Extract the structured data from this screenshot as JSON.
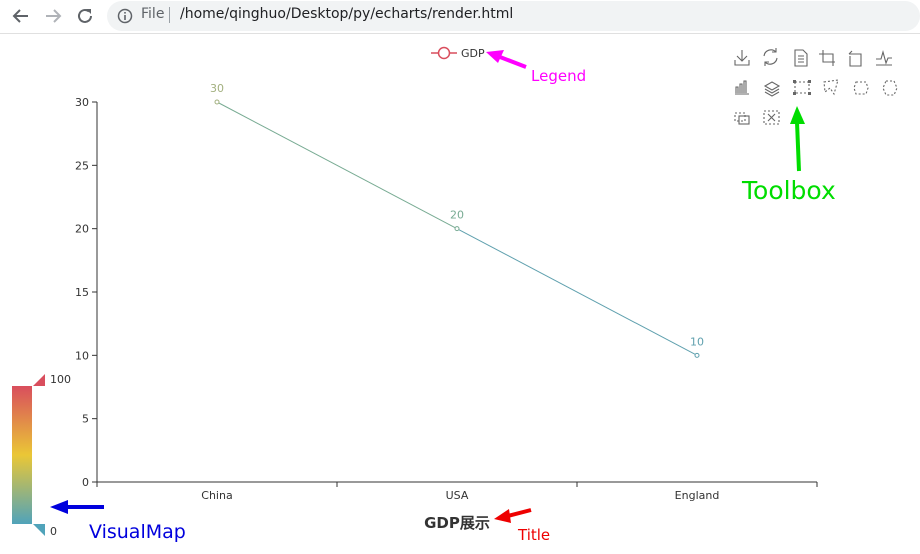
{
  "browser": {
    "url_scheme_label": "File",
    "url": "/home/qinghuo/Desktop/py/echarts/render.html"
  },
  "chart_data": {
    "type": "line",
    "title": "GDP展示",
    "categories": [
      "China",
      "USA",
      "England"
    ],
    "series": [
      {
        "name": "GDP",
        "values": [
          30,
          20,
          10
        ]
      }
    ],
    "ylim": [
      0,
      30
    ],
    "yticks": [
      0,
      5,
      10,
      15,
      20,
      25,
      30
    ],
    "data_labels": true,
    "legend": {
      "position": "top-center",
      "items": [
        "GDP"
      ]
    },
    "grid": false,
    "visual_map": {
      "min": 0,
      "max": 100,
      "min_label": "0",
      "max_label": "100",
      "colors": [
        "#50a3ba",
        "#eac736",
        "#d94e5d"
      ]
    },
    "point_colors": [
      "#a3b07f",
      "#78ab93",
      "#5fa0ae"
    ]
  },
  "toolbox": {
    "icons": [
      "save-image-icon",
      "restore-icon",
      "data-view-icon",
      "zoom-icon",
      "zoom-back-icon",
      "line-type-icon",
      "bar-type-icon",
      "stack-icon",
      "brush-rect-icon",
      "brush-polygon-icon",
      "brush-line-x-icon",
      "brush-line-y-icon",
      "brush-keep-icon",
      "brush-clear-icon"
    ]
  },
  "annotations": {
    "legend": "Legend",
    "toolbox": "Toolbox",
    "visualmap": "VisualMap",
    "title": "Title",
    "colors": {
      "legend": "#ff00ff",
      "toolbox": "#00dd00",
      "visualmap": "#0000dd",
      "title": "#ee0000"
    }
  }
}
